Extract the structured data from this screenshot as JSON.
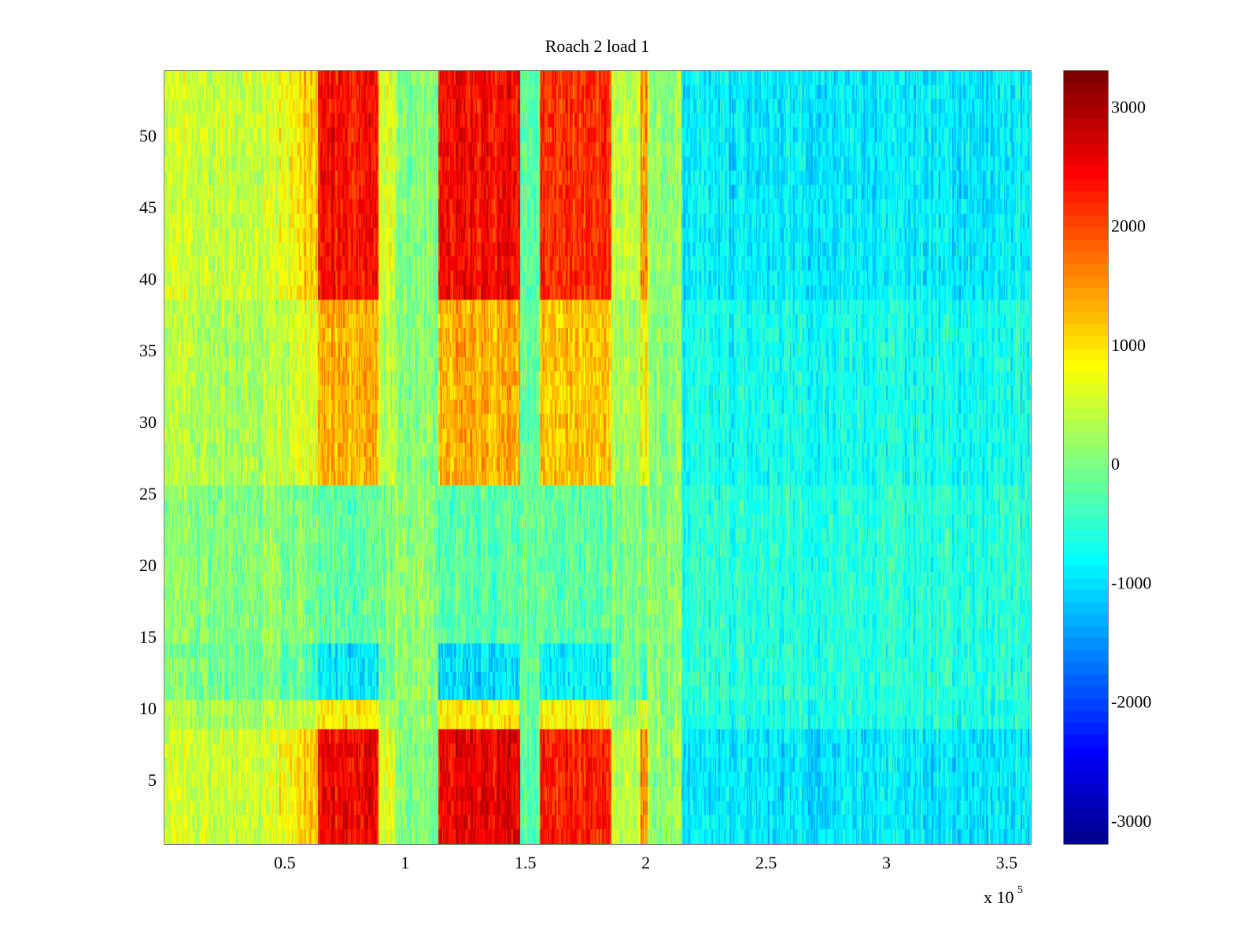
{
  "chart_data": {
    "type": "heatmap",
    "title": "Roach 2 load 1",
    "xlabel": "",
    "ylabel": "",
    "x_exponent_label": {
      "base": "x 10",
      "power": "5"
    },
    "xlim": [
      0,
      3.6
    ],
    "ylim": [
      0.5,
      54.5
    ],
    "rows": 54,
    "x_ticks": [
      0.5,
      1,
      1.5,
      2,
      2.5,
      3,
      3.5
    ],
    "x_tick_labels": [
      "0.5",
      "1",
      "1.5",
      "2",
      "2.5",
      "3",
      "3.5"
    ],
    "y_ticks": [
      5,
      10,
      15,
      20,
      25,
      30,
      35,
      40,
      45,
      50
    ],
    "y_tick_labels": [
      "5",
      "10",
      "15",
      "20",
      "25",
      "30",
      "35",
      "40",
      "45",
      "50"
    ],
    "colormap": "jet",
    "clim": [
      -3200,
      3300
    ],
    "colorbar_ticks": [
      3000,
      2000,
      1000,
      0,
      -1000,
      -2000,
      -3000
    ],
    "colorbar_tick_labels": [
      "3000",
      "2000",
      "1000",
      "0",
      "-1000",
      "-2000",
      "-3000"
    ],
    "x_bands": [
      {
        "x_start": 0.0,
        "x_end": 0.48,
        "level": 550
      },
      {
        "x_start": 0.48,
        "x_end": 0.58,
        "level": 900
      },
      {
        "x_start": 0.58,
        "x_end": 0.64,
        "level": 1250
      },
      {
        "x_start": 0.64,
        "x_end": 0.89,
        "level": 2500
      },
      {
        "x_start": 0.89,
        "x_end": 0.96,
        "level": 700
      },
      {
        "x_start": 0.96,
        "x_end": 1.14,
        "level": 100
      },
      {
        "x_start": 1.14,
        "x_end": 1.48,
        "level": 2600
      },
      {
        "x_start": 1.48,
        "x_end": 1.56,
        "level": -200
      },
      {
        "x_start": 1.56,
        "x_end": 1.86,
        "level": 2300
      },
      {
        "x_start": 1.86,
        "x_end": 1.98,
        "level": 500
      },
      {
        "x_start": 1.98,
        "x_end": 2.01,
        "level": 1600
      },
      {
        "x_start": 2.01,
        "x_end": 2.15,
        "level": 200
      },
      {
        "x_start": 2.15,
        "x_end": 3.6,
        "level": -900
      }
    ],
    "row_groups": [
      {
        "y_start": 1,
        "y_end": 8,
        "weight": 1.0
      },
      {
        "y_start": 9,
        "y_end": 10,
        "weight": 0.35
      },
      {
        "y_start": 11,
        "y_end": 14,
        "weight": -0.45
      },
      {
        "y_start": 15,
        "y_end": 25,
        "weight": -0.15
      },
      {
        "y_start": 26,
        "y_end": 38,
        "weight": 0.5
      },
      {
        "y_start": 39,
        "y_end": 54,
        "weight": 0.95
      }
    ]
  }
}
